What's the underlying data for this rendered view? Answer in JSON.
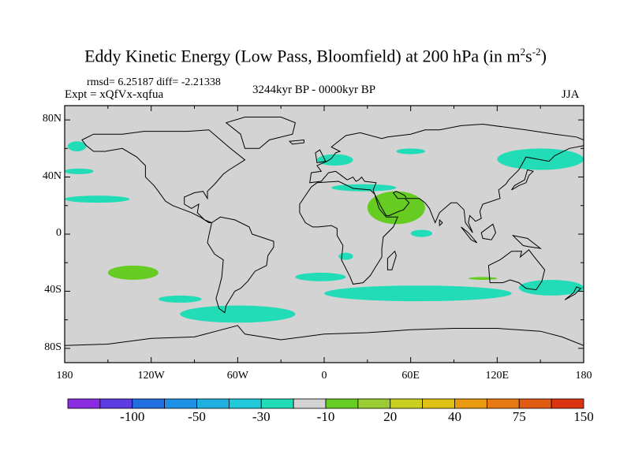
{
  "title_main": "Eddy Kinetic Energy (Low Pass, Bloomfield) at 200 hPa (in m",
  "title_sup1": "2",
  "title_mid": "s",
  "title_sup2": "-2",
  "title_end": ")",
  "rmsd_text": "rmsd= 6.25187 diff= -2.21338",
  "expt_text": "Expt = xQfVx-xqfua",
  "period_text": "3244kyr BP - 0000kyr BP",
  "season_text": "JJA",
  "colors": {
    "land_fill": "#d3d3d3",
    "coastline": "#000000",
    "pos_small": "#66cc22",
    "neg_small": "#22dcb8"
  },
  "chart_data": {
    "type": "heatmap",
    "projection": "cylindrical-equidistant",
    "x_range": [
      -180,
      180
    ],
    "y_range": [
      -90,
      90
    ],
    "x_ticks": [
      "180",
      "120W",
      "60W",
      "0",
      "60E",
      "120E",
      "180"
    ],
    "y_ticks": [
      "80N",
      "40N",
      "0",
      "40S",
      "80S"
    ],
    "colorbar": {
      "colors": [
        "#8a2be2",
        "#5a3ce0",
        "#1f6fe0",
        "#1e90e6",
        "#1fb0e0",
        "#22c9dc",
        "#22dcb8",
        "#d3d3d3",
        "#66cc22",
        "#9acd32",
        "#c9d020",
        "#e0c010",
        "#ea9a10",
        "#e67a10",
        "#e05a10",
        "#dc3410"
      ],
      "labels": [
        "-100",
        "-50",
        "-30",
        "-10",
        "20",
        "40",
        "75",
        "150"
      ]
    },
    "regions": [
      {
        "sign": "negative",
        "level": "-10",
        "lon": [
          -178,
          -165
        ],
        "lat": [
          58,
          65
        ]
      },
      {
        "sign": "negative",
        "level": "-10",
        "lon": [
          -180,
          -160
        ],
        "lat": [
          42,
          46
        ]
      },
      {
        "sign": "negative",
        "level": "-10",
        "lon": [
          -180,
          -135
        ],
        "lat": [
          22,
          27
        ]
      },
      {
        "sign": "negative",
        "level": "-10",
        "lon": [
          -5,
          20
        ],
        "lat": [
          48,
          56
        ]
      },
      {
        "sign": "negative",
        "level": "-10",
        "lon": [
          5,
          50
        ],
        "lat": [
          30,
          35
        ]
      },
      {
        "sign": "negative",
        "level": "-10",
        "lon": [
          50,
          70
        ],
        "lat": [
          56,
          60
        ]
      },
      {
        "sign": "negative",
        "level": "-10",
        "lon": [
          120,
          180
        ],
        "lat": [
          45,
          60
        ]
      },
      {
        "sign": "negative",
        "level": "-10",
        "lon": [
          -115,
          -85
        ],
        "lat": [
          -48,
          -43
        ]
      },
      {
        "sign": "negative",
        "level": "-10",
        "lon": [
          -100,
          -20
        ],
        "lat": [
          -62,
          -50
        ]
      },
      {
        "sign": "negative",
        "level": "-10",
        "lon": [
          -20,
          15
        ],
        "lat": [
          -33,
          -27
        ]
      },
      {
        "sign": "negative",
        "level": "-10",
        "lon": [
          0,
          130
        ],
        "lat": [
          -47,
          -36
        ]
      },
      {
        "sign": "negative",
        "level": "-10",
        "lon": [
          135,
          180
        ],
        "lat": [
          -43,
          -32
        ]
      },
      {
        "sign": "negative",
        "level": "-10",
        "lon": [
          60,
          75
        ],
        "lat": [
          -2,
          3
        ]
      },
      {
        "sign": "negative",
        "level": "-10",
        "lon": [
          10,
          20
        ],
        "lat": [
          -18,
          -13
        ]
      },
      {
        "sign": "positive",
        "level": "20",
        "lon": [
          30,
          70
        ],
        "lat": [
          7,
          30
        ]
      },
      {
        "sign": "positive",
        "level": "20",
        "lon": [
          -150,
          -115
        ],
        "lat": [
          -32,
          -22
        ]
      },
      {
        "sign": "positive",
        "level": "20",
        "lon": [
          100,
          120
        ],
        "lat": [
          -32,
          -30
        ]
      }
    ]
  }
}
